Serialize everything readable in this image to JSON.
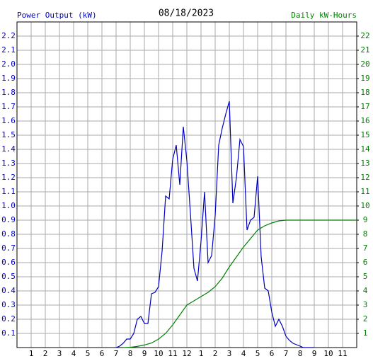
{
  "chart_data": {
    "type": "line",
    "title": "08/18/2023",
    "ylabel": "Power Output (kW)",
    "y2label": "Daily kW-Hours",
    "grid": true,
    "xlim": [
      0,
      24
    ],
    "xticks": [
      1,
      2,
      3,
      4,
      5,
      6,
      7,
      8,
      9,
      10,
      11,
      12,
      {
        "value": 13,
        "label": "1"
      },
      {
        "value": 14,
        "label": "2"
      },
      {
        "value": 15,
        "label": "3"
      },
      {
        "value": 16,
        "label": "4"
      },
      {
        "value": 17,
        "label": "5"
      },
      {
        "value": 18,
        "label": "6"
      },
      {
        "value": 19,
        "label": "7"
      },
      {
        "value": 20,
        "label": "8"
      },
      {
        "value": 21,
        "label": "9"
      },
      {
        "value": 22,
        "label": "10"
      },
      {
        "value": 23,
        "label": "11"
      }
    ],
    "ylim": [
      0,
      2.3
    ],
    "yticks": [
      0.1,
      0.2,
      0.3,
      0.4,
      0.5,
      0.6,
      0.7,
      0.8,
      0.9,
      {
        "value": 1.0,
        "label": "1.0"
      },
      1.1,
      1.2,
      1.3,
      1.4,
      1.5,
      1.6,
      1.7,
      1.8,
      1.9,
      {
        "value": 2.0,
        "label": "2.0"
      },
      2.1,
      2.2
    ],
    "y2lim": [
      0,
      23
    ],
    "y2ticks": [
      1,
      2,
      3,
      4,
      5,
      6,
      7,
      8,
      9,
      10,
      11,
      12,
      13,
      14,
      15,
      16,
      17,
      18,
      19,
      20,
      21,
      22
    ],
    "series": [
      {
        "name": "Power Output (kW)",
        "color": "#0000c0",
        "x": [
          7,
          7.25,
          7.5,
          7.75,
          8,
          8.25,
          8.5,
          8.75,
          9,
          9.25,
          9.5,
          9.75,
          10,
          10.25,
          10.5,
          10.75,
          11,
          11.25,
          11.5,
          11.75,
          12,
          12.25,
          12.5,
          12.75,
          13,
          13.25,
          13.5,
          13.75,
          14,
          14.25,
          14.5,
          14.75,
          15,
          15.25,
          15.5,
          15.75,
          16,
          16.25,
          16.5,
          16.75,
          17,
          17.25,
          17.5,
          17.75,
          18,
          18.25,
          18.5,
          18.75,
          19,
          19.25,
          19.5,
          19.75,
          20,
          20.25,
          21
        ],
        "values": [
          0,
          0.01,
          0.03,
          0.06,
          0.06,
          0.1,
          0.2,
          0.22,
          0.17,
          0.17,
          0.38,
          0.39,
          0.43,
          0.68,
          1.07,
          1.05,
          1.33,
          1.43,
          1.15,
          1.56,
          1.32,
          0.95,
          0.56,
          0.47,
          0.75,
          1.1,
          0.6,
          0.65,
          0.93,
          1.43,
          1.55,
          1.65,
          1.74,
          1.02,
          1.2,
          1.47,
          1.42,
          0.83,
          0.9,
          0.92,
          1.21,
          0.64,
          0.42,
          0.4,
          0.25,
          0.15,
          0.2,
          0.15,
          0.08,
          0.05,
          0.03,
          0.02,
          0.01,
          0,
          0
        ]
      },
      {
        "name": "Daily kW-Hours",
        "color": "#008000",
        "axis": "y2",
        "x": [
          7.5,
          8,
          8.5,
          9,
          9.5,
          10,
          10.5,
          11,
          11.5,
          12,
          12.5,
          13,
          13.5,
          14,
          14.5,
          15,
          15.5,
          16,
          16.5,
          17,
          17.5,
          18,
          18.5,
          19,
          24
        ],
        "values": [
          0,
          0.02,
          0.08,
          0.18,
          0.32,
          0.6,
          1.0,
          1.6,
          2.3,
          3.0,
          3.3,
          3.6,
          3.9,
          4.3,
          4.9,
          5.7,
          6.4,
          7.1,
          7.7,
          8.3,
          8.6,
          8.8,
          8.95,
          9.0,
          9.0
        ]
      }
    ]
  }
}
